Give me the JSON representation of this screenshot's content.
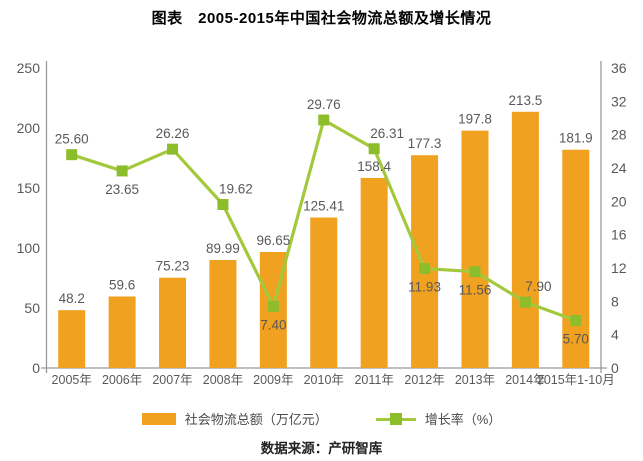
{
  "title": "图表　2005-2015年中国社会物流总额及增长情况",
  "source": "数据来源：产研智库",
  "legend": {
    "bar_label": "社会物流总额（万亿元）",
    "line_label": "增长率（%）"
  },
  "colors": {
    "bar": "#F0A120",
    "line": "#A4C83C",
    "marker": "#8CBE2C",
    "label": "#595959",
    "axis": "#9B9B9B"
  },
  "chart_data": {
    "type": "bar",
    "subtype": "bar-line-combo",
    "title": "图表　2005-2015年中国社会物流总额及增长情况",
    "categories": [
      "2005年",
      "2006年",
      "2007年",
      "2008年",
      "2009年",
      "2010年",
      "2011年",
      "2012年",
      "2013年",
      "2014年",
      "2015年1-10月"
    ],
    "series": [
      {
        "name": "社会物流总额（万亿元）",
        "type": "bar",
        "axis": "left",
        "values": [
          48.2,
          59.6,
          75.23,
          89.99,
          96.65,
          125.41,
          158.4,
          177.3,
          197.8,
          213.5,
          181.9
        ],
        "labels": [
          "48.2",
          "59.6",
          "75.23",
          "89.99",
          "96.65",
          "125.41",
          "158.4",
          "177.3",
          "197.8",
          "213.5",
          "181.9"
        ]
      },
      {
        "name": "增长率（%）",
        "type": "line",
        "axis": "right",
        "values": [
          25.6,
          23.65,
          26.26,
          19.62,
          7.4,
          29.76,
          26.31,
          11.93,
          11.56,
          7.9,
          5.7
        ],
        "labels": [
          "25.60",
          "23.65",
          "26.26",
          "19.62",
          "7.40",
          "29.76",
          "26.31",
          "11.93",
          "11.56",
          "7.90",
          "5.70"
        ],
        "label_pos": [
          "above",
          "below",
          "above",
          "above-right",
          "below",
          "above",
          "above-right",
          "below",
          "below",
          "above-right",
          "below"
        ]
      }
    ],
    "left_axis": {
      "min": 0,
      "max": 250,
      "ticks": [
        0,
        50,
        100,
        150,
        200,
        250
      ]
    },
    "right_axis": {
      "min": 0,
      "max": 36,
      "ticks": [
        0,
        4,
        8,
        12,
        16,
        20,
        24,
        28,
        32,
        36
      ]
    },
    "grid": false,
    "legend_position": "bottom"
  }
}
